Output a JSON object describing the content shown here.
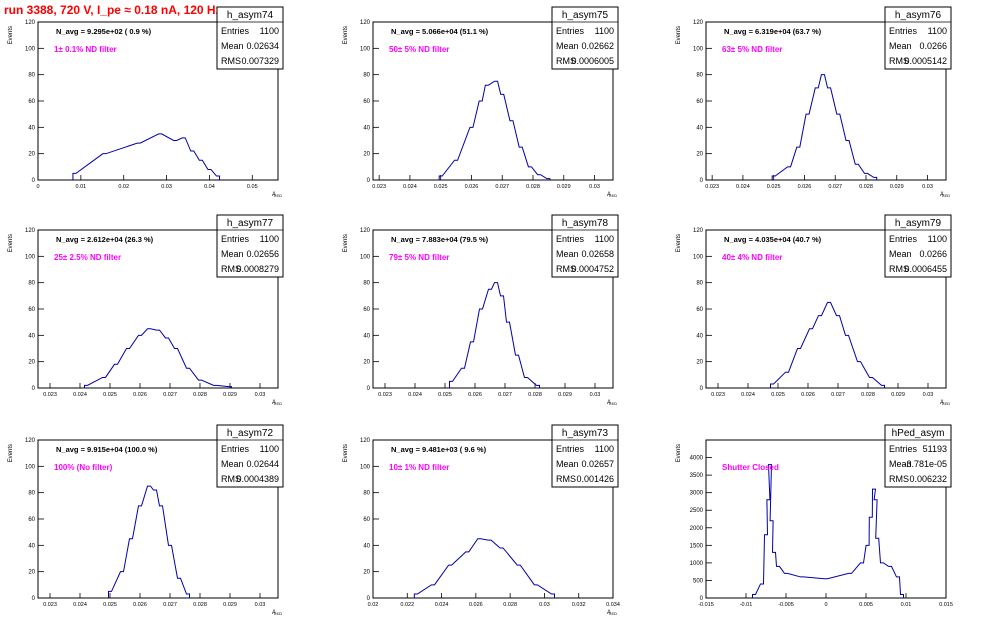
{
  "page_title": "run 3388,   720 V, I_pe ≈ 0.18 nA, 120 Hz",
  "title_color": "#ff0000",
  "annotation_color": "#ff00ff",
  "stats_labels": [
    "Entries",
    "Mean",
    "RMS"
  ],
  "chart_data": [
    {
      "type": "histogram",
      "name": "h_asym74",
      "navg": "N_avg = 9.295e+02 ( 0.9 %)",
      "annotation": "1± 0.1% ND filter",
      "stats": [
        "1100",
        "0.02634",
        "0.007329"
      ],
      "xlabel": "A",
      "xlabel_sub": "LED",
      "ylabel": "Events",
      "xlim": [
        0,
        0.056
      ],
      "ylim": [
        0,
        120
      ],
      "xticks": [
        0,
        0.01,
        0.02,
        0.03,
        0.04,
        0.05
      ],
      "xtick_labels": [
        "0",
        "0.01",
        "0.02",
        "0.03",
        "0.04",
        "0.05"
      ],
      "yticks": [
        0,
        20,
        40,
        60,
        80,
        100,
        120
      ],
      "ytick_labels": [
        "0",
        "20",
        "40",
        "60",
        "80",
        "100",
        "120"
      ],
      "x": [
        0.0085,
        0.0155,
        0.0235,
        0.0285,
        0.032,
        0.034,
        0.036,
        0.038,
        0.04,
        0.042
      ],
      "y": [
        5,
        20,
        28,
        35,
        30,
        32,
        22,
        15,
        8,
        3
      ]
    },
    {
      "type": "histogram",
      "name": "h_asym75",
      "navg": "N_avg = 5.066e+04 (51.1 %)",
      "annotation": "50± 5% ND filter",
      "stats": [
        "1100",
        "0.02662",
        "0.0006005"
      ],
      "xlabel": "A",
      "xlabel_sub": "LED",
      "ylabel": "Events",
      "xlim": [
        0.0228,
        0.0306
      ],
      "ylim": [
        0,
        120
      ],
      "xticks": [
        0.023,
        0.024,
        0.025,
        0.026,
        0.027,
        0.028,
        0.029,
        0.03
      ],
      "xtick_labels": [
        "0.023",
        "0.024",
        "0.025",
        "0.026",
        "0.027",
        "0.028",
        "0.029",
        "0.03"
      ],
      "yticks": [
        0,
        20,
        40,
        60,
        80,
        100,
        120
      ],
      "ytick_labels": [
        "0",
        "20",
        "40",
        "60",
        "80",
        "100",
        "120"
      ],
      "x": [
        0.025,
        0.0255,
        0.026,
        0.0263,
        0.0265,
        0.0268,
        0.027,
        0.0273,
        0.0276,
        0.0279,
        0.0282,
        0.0285
      ],
      "y": [
        3,
        15,
        40,
        60,
        72,
        75,
        65,
        45,
        25,
        10,
        4,
        1
      ]
    },
    {
      "type": "histogram",
      "name": "h_asym76",
      "navg": "N_avg = 6.319e+04 (63.7 %)",
      "annotation": "63± 5% ND filter",
      "stats": [
        "1100",
        "0.0266",
        "0.0005142"
      ],
      "xlabel": "A",
      "xlabel_sub": "LED",
      "ylabel": "Events",
      "xlim": [
        0.0228,
        0.0306
      ],
      "ylim": [
        0,
        120
      ],
      "xticks": [
        0.023,
        0.024,
        0.025,
        0.026,
        0.027,
        0.028,
        0.029,
        0.03
      ],
      "xtick_labels": [
        "0.023",
        "0.024",
        "0.025",
        "0.026",
        "0.027",
        "0.028",
        "0.029",
        "0.03"
      ],
      "yticks": [
        0,
        20,
        40,
        60,
        80,
        100,
        120
      ],
      "ytick_labels": [
        "0",
        "20",
        "40",
        "60",
        "80",
        "100",
        "120"
      ],
      "x": [
        0.025,
        0.0255,
        0.0258,
        0.0261,
        0.0264,
        0.0266,
        0.0268,
        0.0271,
        0.0274,
        0.0277,
        0.028,
        0.0283
      ],
      "y": [
        3,
        10,
        25,
        50,
        70,
        80,
        70,
        50,
        30,
        12,
        5,
        2
      ]
    },
    {
      "type": "histogram",
      "name": "h_asym77",
      "navg": "N_avg = 2.612e+04 (26.3 %)",
      "annotation": "25± 2.5% ND filter",
      "stats": [
        "1100",
        "0.02656",
        "0.0008279"
      ],
      "xlabel": "A",
      "xlabel_sub": "LED",
      "ylabel": "Events",
      "xlim": [
        0.0226,
        0.0306
      ],
      "ylim": [
        0,
        120
      ],
      "xticks": [
        0.023,
        0.024,
        0.025,
        0.026,
        0.027,
        0.028,
        0.029,
        0.03
      ],
      "xtick_labels": [
        "0.023",
        "0.024",
        "0.025",
        "0.026",
        "0.027",
        "0.028",
        "0.029",
        "0.03"
      ],
      "yticks": [
        0,
        20,
        40,
        60,
        80,
        100,
        120
      ],
      "ytick_labels": [
        "0",
        "20",
        "40",
        "60",
        "80",
        "100",
        "120"
      ],
      "x": [
        0.0242,
        0.0248,
        0.0252,
        0.0256,
        0.026,
        0.0263,
        0.0266,
        0.0269,
        0.0272,
        0.0276,
        0.028,
        0.0285,
        0.029
      ],
      "y": [
        2,
        8,
        18,
        30,
        40,
        45,
        44,
        38,
        30,
        15,
        6,
        2,
        1
      ]
    },
    {
      "type": "histogram",
      "name": "h_asym78",
      "navg": "N_avg = 7.883e+04 (79.5 %)",
      "annotation": "79± 5% ND filter",
      "stats": [
        "1100",
        "0.02658",
        "0.0004752"
      ],
      "xlabel": "A",
      "xlabel_sub": "LED",
      "ylabel": "Events",
      "xlim": [
        0.0226,
        0.0306
      ],
      "ylim": [
        0,
        120
      ],
      "xticks": [
        0.023,
        0.024,
        0.025,
        0.026,
        0.027,
        0.028,
        0.029,
        0.03
      ],
      "xtick_labels": [
        "0.023",
        "0.024",
        "0.025",
        "0.026",
        "0.027",
        "0.028",
        "0.029",
        "0.03"
      ],
      "yticks": [
        0,
        20,
        40,
        60,
        80,
        100,
        120
      ],
      "ytick_labels": [
        "0",
        "20",
        "40",
        "60",
        "80",
        "100",
        "120"
      ],
      "x": [
        0.0252,
        0.0256,
        0.0259,
        0.0262,
        0.0265,
        0.0267,
        0.0269,
        0.0271,
        0.0274,
        0.0277,
        0.0281
      ],
      "y": [
        5,
        15,
        35,
        60,
        75,
        80,
        70,
        50,
        25,
        8,
        2
      ]
    },
    {
      "type": "histogram",
      "name": "h_asym79",
      "navg": "N_avg = 4.035e+04 (40.7 %)",
      "annotation": "40± 4% ND filter",
      "stats": [
        "1100",
        "0.0266",
        "0.0006455"
      ],
      "xlabel": "A",
      "xlabel_sub": "LED",
      "ylabel": "Events",
      "xlim": [
        0.0226,
        0.0306
      ],
      "ylim": [
        0,
        120
      ],
      "xticks": [
        0.023,
        0.024,
        0.025,
        0.026,
        0.027,
        0.028,
        0.029,
        0.03
      ],
      "xtick_labels": [
        "0.023",
        "0.024",
        "0.025",
        "0.026",
        "0.027",
        "0.028",
        "0.029",
        "0.03"
      ],
      "yticks": [
        0,
        20,
        40,
        60,
        80,
        100,
        120
      ],
      "ytick_labels": [
        "0",
        "20",
        "40",
        "60",
        "80",
        "100",
        "120"
      ],
      "x": [
        0.0248,
        0.0253,
        0.0257,
        0.0261,
        0.0264,
        0.0267,
        0.027,
        0.0273,
        0.0277,
        0.0281,
        0.0285
      ],
      "y": [
        3,
        12,
        30,
        45,
        55,
        65,
        55,
        40,
        20,
        8,
        2
      ]
    },
    {
      "type": "histogram",
      "name": "h_asym72",
      "navg": "N_avg = 9.915e+04 (100.0 %)",
      "annotation": "100% (No filter)",
      "stats": [
        "1100",
        "0.02644",
        "0.0004389"
      ],
      "xlabel": "A",
      "xlabel_sub": "LED",
      "ylabel": "Events",
      "xlim": [
        0.0226,
        0.0306
      ],
      "ylim": [
        0,
        120
      ],
      "xticks": [
        0.023,
        0.024,
        0.025,
        0.026,
        0.027,
        0.028,
        0.029,
        0.03
      ],
      "xtick_labels": [
        "0.023",
        "0.024",
        "0.025",
        "0.026",
        "0.027",
        "0.028",
        "0.029",
        "0.03"
      ],
      "yticks": [
        0,
        20,
        40,
        60,
        80,
        100,
        120
      ],
      "ytick_labels": [
        "0",
        "20",
        "40",
        "60",
        "80",
        "100",
        "120"
      ],
      "x": [
        0.025,
        0.0254,
        0.0257,
        0.026,
        0.0263,
        0.0265,
        0.0267,
        0.027,
        0.0273,
        0.0276
      ],
      "y": [
        5,
        20,
        45,
        70,
        85,
        82,
        70,
        40,
        15,
        3
      ]
    },
    {
      "type": "histogram",
      "name": "h_asym73",
      "navg": "N_avg = 9.481e+03 ( 9.6 %)",
      "annotation": "10± 1% ND filter",
      "stats": [
        "1100",
        "0.02657",
        "0.001426"
      ],
      "xlabel": "A",
      "xlabel_sub": "LED",
      "ylabel": "Events",
      "xlim": [
        0.02,
        0.034
      ],
      "ylim": [
        0,
        120
      ],
      "xticks": [
        0.02,
        0.022,
        0.024,
        0.026,
        0.028,
        0.03,
        0.032,
        0.034
      ],
      "xtick_labels": [
        "0.02",
        "0.022",
        "0.024",
        "0.026",
        "0.028",
        "0.03",
        "0.032",
        "0.034"
      ],
      "yticks": [
        0,
        20,
        40,
        60,
        80,
        100,
        120
      ],
      "ytick_labels": [
        "0",
        "20",
        "40",
        "60",
        "80",
        "100",
        "120"
      ],
      "x": [
        0.0225,
        0.0235,
        0.0245,
        0.0255,
        0.0262,
        0.0268,
        0.0275,
        0.0285,
        0.0295,
        0.0305
      ],
      "y": [
        3,
        10,
        25,
        35,
        45,
        44,
        38,
        25,
        10,
        3
      ]
    },
    {
      "type": "histogram",
      "name": "hPed_asym",
      "navg": "",
      "annotation": "Shutter Closed",
      "stats": [
        "51193",
        "-3.781e-05",
        "0.006232"
      ],
      "xlabel": "",
      "xlabel_sub": "",
      "ylabel": "Events",
      "xlim": [
        -0.015,
        0.015
      ],
      "ylim": [
        0,
        4500
      ],
      "xticks": [
        -0.015,
        -0.01,
        -0.005,
        0,
        0.005,
        0.01,
        0.015
      ],
      "xtick_labels": [
        "-0.015",
        "-0.01",
        "-0.005",
        "0",
        "0.005",
        "0.01",
        "0.015"
      ],
      "yticks": [
        0,
        500,
        1000,
        1500,
        2000,
        2500,
        3000,
        3500,
        4000
      ],
      "ytick_labels": [
        "0",
        "500",
        "1000",
        "1500",
        "2000",
        "2500",
        "3000",
        "3500",
        "4000"
      ],
      "x": [
        -0.009,
        -0.008,
        -0.0075,
        -0.0072,
        -0.007,
        -0.0068,
        -0.0065,
        -0.006,
        -0.005,
        -0.003,
        0,
        0.003,
        0.0045,
        0.0052,
        0.0056,
        0.006,
        0.0062,
        0.0064,
        0.007,
        0.008,
        0.009,
        0.0095
      ],
      "y": [
        100,
        400,
        1800,
        2800,
        3800,
        2200,
        1300,
        900,
        700,
        600,
        550,
        700,
        1000,
        1500,
        2300,
        3100,
        2800,
        1700,
        1000,
        900,
        600,
        100
      ]
    }
  ]
}
